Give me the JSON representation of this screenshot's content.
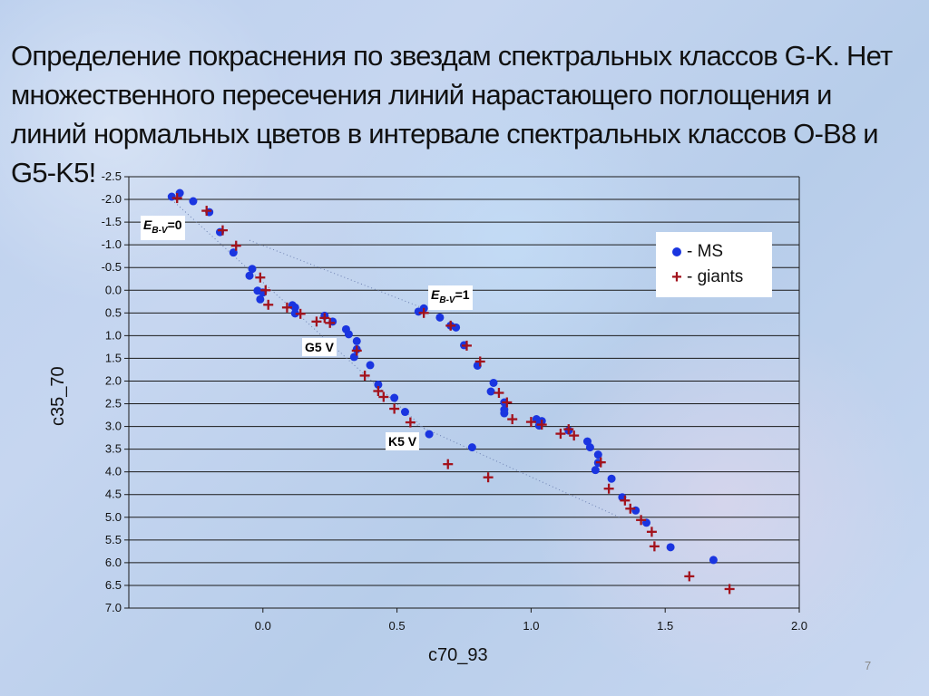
{
  "title": "Определение покраснения по звездам спектральных классов G-K. Нет множественного пересечения линий нарастающего поглощения и линий нормальных цветов в интервале спектральных классов O-B8 и G5-K5!",
  "page_number": "7",
  "colors": {
    "ms": "#1a35e0",
    "giants": "#a3121c",
    "grid": "#1a1a1a"
  },
  "annotations": {
    "e0_label": "E",
    "e0_sub": "B-V",
    "e0_value": "=0",
    "e1_label": "E",
    "e1_sub": "B-V",
    "e1_value": "=1",
    "g5": "G5 V",
    "k5": "K5 V"
  },
  "chart_data": {
    "type": "scatter",
    "title": "",
    "xlabel": "c70_93",
    "ylabel": "c35_70",
    "xlim": [
      -0.5,
      2.0
    ],
    "ylim": [
      -2.5,
      7.0
    ],
    "y_inverted": true,
    "grid": true,
    "x_ticks": [
      "0.0",
      "0.5",
      "1.0",
      "1.5",
      "2.0"
    ],
    "y_ticks": [
      "-2.5",
      "-2.0",
      "-1.5",
      "-1.0",
      "-0.5",
      "0.0",
      "0.5",
      "1.0",
      "1.5",
      "2.0",
      "2.5",
      "3.0",
      "3.5",
      "4.0",
      "4.5",
      "5.0",
      "5.5",
      "6.0",
      "6.5",
      "7.0"
    ],
    "legend": {
      "placement": "right",
      "entries": [
        {
          "symbol": "dot",
          "label": "- MS"
        },
        {
          "symbol": "plus",
          "label": "- giants"
        }
      ]
    },
    "series": [
      {
        "name": "MS",
        "marker": "dot",
        "points": [
          [
            -0.34,
            -2.06
          ],
          [
            -0.31,
            -2.14
          ],
          [
            -0.26,
            -1.96
          ],
          [
            -0.2,
            -1.72
          ],
          [
            -0.16,
            -1.28
          ],
          [
            -0.11,
            -0.83
          ],
          [
            -0.04,
            -0.47
          ],
          [
            -0.05,
            -0.32
          ],
          [
            -0.02,
            0.01
          ],
          [
            0.0,
            0.05
          ],
          [
            -0.01,
            0.2
          ],
          [
            0.11,
            0.33
          ],
          [
            0.12,
            0.38
          ],
          [
            0.12,
            0.51
          ],
          [
            0.23,
            0.56
          ],
          [
            0.26,
            0.69
          ],
          [
            0.31,
            0.86
          ],
          [
            0.32,
            0.97
          ],
          [
            0.35,
            1.12
          ],
          [
            0.35,
            1.3
          ],
          [
            0.34,
            1.47
          ],
          [
            0.4,
            1.65
          ],
          [
            0.43,
            2.08
          ],
          [
            0.49,
            2.37
          ],
          [
            0.53,
            2.68
          ],
          [
            0.62,
            3.17
          ],
          [
            0.58,
            0.47
          ],
          [
            0.6,
            0.4
          ],
          [
            0.66,
            0.6
          ],
          [
            0.7,
            0.78
          ],
          [
            0.72,
            0.82
          ],
          [
            0.75,
            1.21
          ],
          [
            0.8,
            1.66
          ],
          [
            0.85,
            2.23
          ],
          [
            0.86,
            2.04
          ],
          [
            0.9,
            2.47
          ],
          [
            0.9,
            2.63
          ],
          [
            0.9,
            2.71
          ],
          [
            1.02,
            2.84
          ],
          [
            1.03,
            2.98
          ],
          [
            1.04,
            2.88
          ],
          [
            1.14,
            3.09
          ],
          [
            1.21,
            3.33
          ],
          [
            1.22,
            3.46
          ],
          [
            1.24,
            3.96
          ],
          [
            1.25,
            3.62
          ],
          [
            1.25,
            3.8
          ],
          [
            1.3,
            4.15
          ],
          [
            1.34,
            4.56
          ],
          [
            1.39,
            4.85
          ],
          [
            1.43,
            5.12
          ],
          [
            1.52,
            5.66
          ],
          [
            1.68,
            5.94
          ],
          [
            0.78,
            3.46
          ]
        ]
      },
      {
        "name": "giants",
        "marker": "plus",
        "points": [
          [
            -0.32,
            -2.03
          ],
          [
            -0.21,
            -1.75
          ],
          [
            -0.15,
            -1.32
          ],
          [
            -0.1,
            -0.98
          ],
          [
            -0.01,
            -0.28
          ],
          [
            0.01,
            0.0
          ],
          [
            0.02,
            0.32
          ],
          [
            0.09,
            0.38
          ],
          [
            0.14,
            0.52
          ],
          [
            0.2,
            0.69
          ],
          [
            0.23,
            0.61
          ],
          [
            0.25,
            0.72
          ],
          [
            0.35,
            1.33
          ],
          [
            0.38,
            1.88
          ],
          [
            0.43,
            2.22
          ],
          [
            0.45,
            2.35
          ],
          [
            0.49,
            2.61
          ],
          [
            0.55,
            2.91
          ],
          [
            0.6,
            0.5
          ],
          [
            0.7,
            0.78
          ],
          [
            0.76,
            1.22
          ],
          [
            0.81,
            1.57
          ],
          [
            0.88,
            2.26
          ],
          [
            0.91,
            2.47
          ],
          [
            0.93,
            2.84
          ],
          [
            1.0,
            2.9
          ],
          [
            1.04,
            2.96
          ],
          [
            1.11,
            3.16
          ],
          [
            1.14,
            3.06
          ],
          [
            1.16,
            3.2
          ],
          [
            1.26,
            3.79
          ],
          [
            1.29,
            4.37
          ],
          [
            1.35,
            4.63
          ],
          [
            1.37,
            4.81
          ],
          [
            1.41,
            5.06
          ],
          [
            1.45,
            5.32
          ],
          [
            1.46,
            5.64
          ],
          [
            1.59,
            6.3
          ],
          [
            1.74,
            6.58
          ],
          [
            0.69,
            3.83
          ],
          [
            0.84,
            4.12
          ]
        ]
      }
    ],
    "reference_lines": [
      {
        "name": "normal-colors",
        "style": "dotted",
        "points": [
          [
            -0.35,
            -2.05
          ],
          [
            0.63,
            3.2
          ]
        ]
      },
      {
        "name": "reddening-line-upper",
        "style": "dotted",
        "points": [
          [
            -0.05,
            -1.1
          ],
          [
            0.6,
            0.4
          ]
        ]
      },
      {
        "name": "reddening-line-lower",
        "style": "dotted",
        "points": [
          [
            0.55,
            2.9
          ],
          [
            1.33,
            5.0
          ]
        ]
      }
    ]
  }
}
